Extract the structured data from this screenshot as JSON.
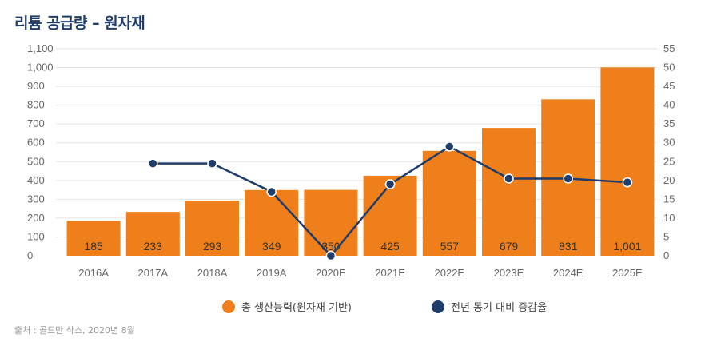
{
  "title": "리튬 공급량 – 원자재",
  "source": "출처 : 골드만 삭스, 2020년 8월",
  "colors": {
    "bar": "#ef7f1a",
    "line": "#1f3d6b",
    "grid": "#e2e2e2"
  },
  "chart_data": {
    "type": "bar+line",
    "categories": [
      "2016A",
      "2017A",
      "2018A",
      "2019A",
      "2020E",
      "2021E",
      "2022E",
      "2023E",
      "2024E",
      "2025E"
    ],
    "bar_series": {
      "name": "총 생산능력(원자재 기반)",
      "values": [
        185,
        233,
        293,
        349,
        350,
        425,
        557,
        679,
        831,
        1001
      ],
      "labels": [
        "185",
        "233",
        "293",
        "349",
        "350",
        "425",
        "557",
        "679",
        "831",
        "1,001"
      ]
    },
    "line_series": {
      "name": "전년 동기 대비 증감율",
      "values": [
        null,
        24.5,
        24.5,
        17,
        0,
        19,
        29,
        20.5,
        20.5,
        19.5
      ]
    },
    "left_axis": {
      "ylim": [
        0,
        1100
      ],
      "ticks": [
        "0",
        "100",
        "200",
        "300",
        "400",
        "500",
        "600",
        "700",
        "800",
        "900",
        "1,000",
        "1,100"
      ]
    },
    "right_axis": {
      "ylim": [
        0,
        55
      ],
      "ticks": [
        "0",
        "5",
        "10",
        "15",
        "20",
        "25",
        "30",
        "35",
        "40",
        "45",
        "50",
        "55"
      ]
    }
  }
}
